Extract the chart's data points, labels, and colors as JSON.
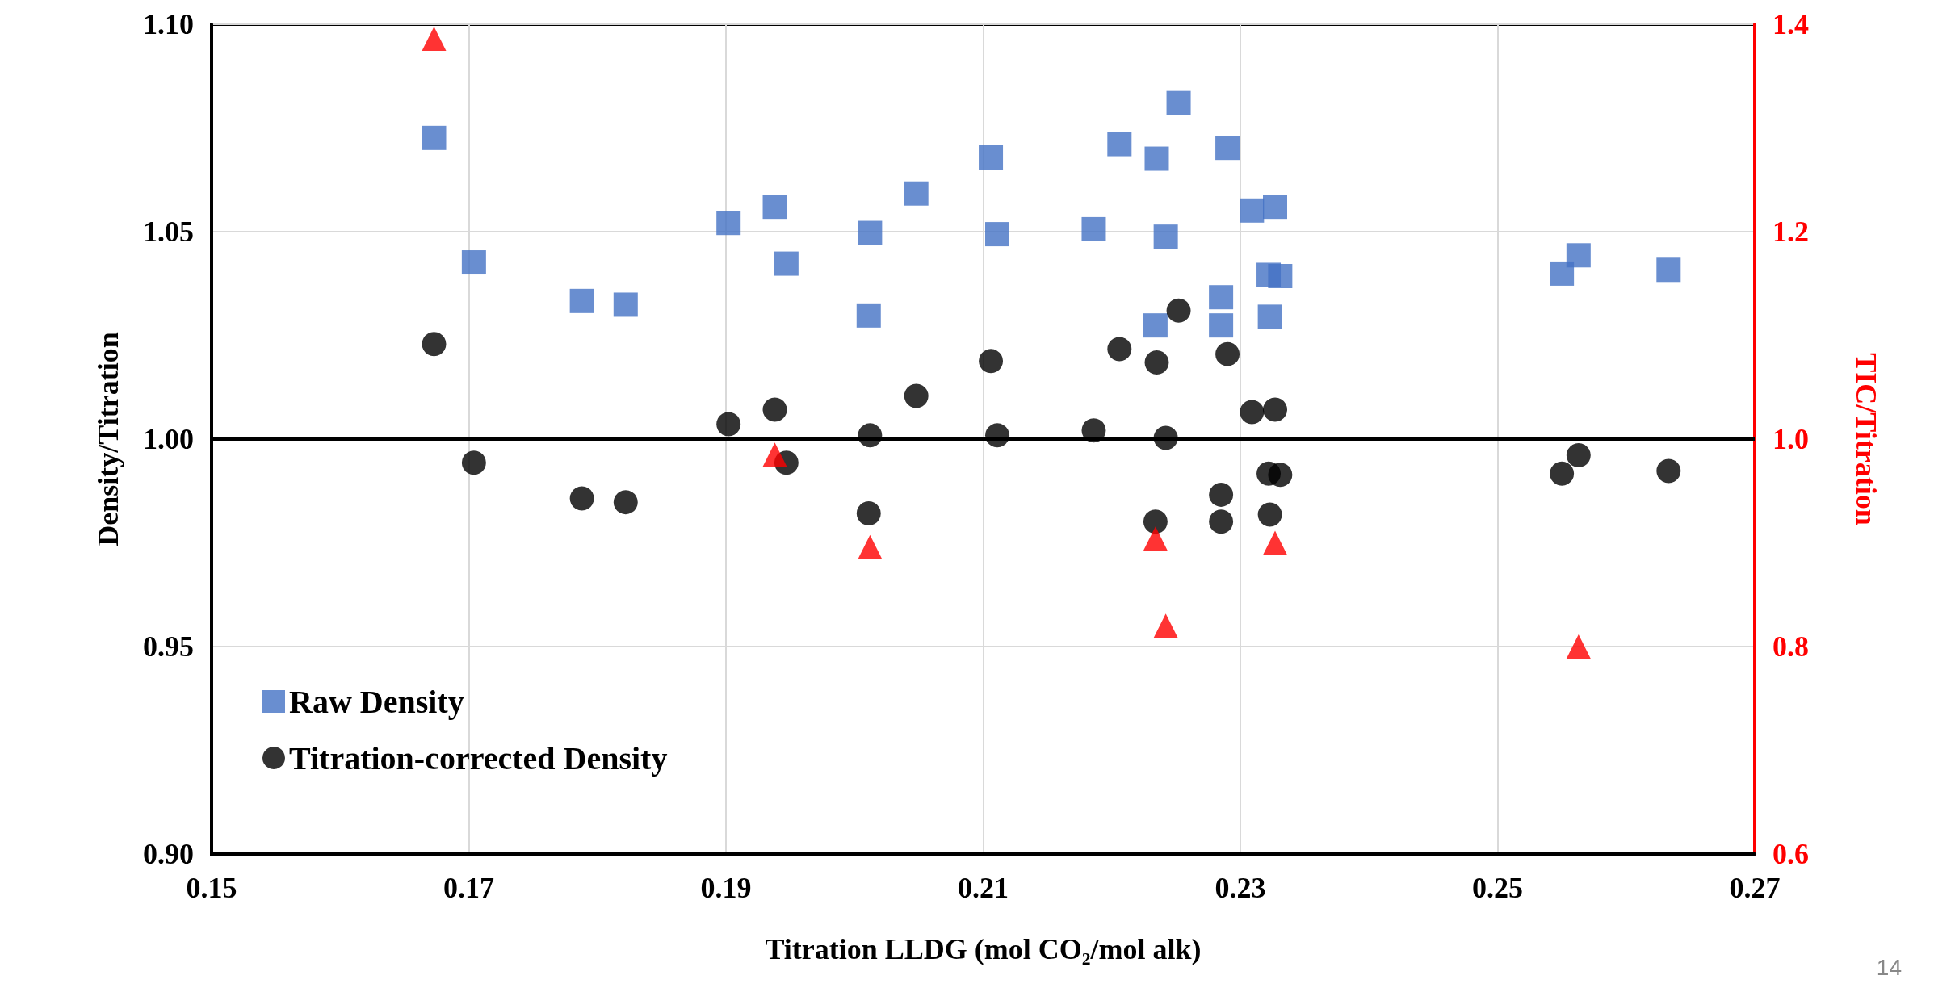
{
  "chart_data": {
    "type": "scatter",
    "xlabel": "Titration LLDG (mol CO₂/mol alk)",
    "ylabel": "Density/Titration",
    "y2label": "TIC/Titration",
    "xlim": [
      0.15,
      0.27
    ],
    "xticks": [
      0.15,
      0.17,
      0.19,
      0.21,
      0.23,
      0.25,
      0.27
    ],
    "ylim": [
      0.9,
      1.1
    ],
    "yticks": [
      {
        "value": 0.9,
        "label": "0.90"
      },
      {
        "value": 0.95,
        "label": "0.95"
      },
      {
        "value": 1.0,
        "label": "1.00"
      },
      {
        "value": 1.05,
        "label": "1.05"
      },
      {
        "value": 1.1,
        "label": "1.10"
      }
    ],
    "y2lim": [
      0.6,
      1.4
    ],
    "y2ticks": [
      0.6,
      0.8,
      {
        "value": 1.0,
        "label": "1.0"
      },
      1.2,
      1.4
    ],
    "grid": true,
    "legend": "bottom left",
    "ref_lines": [
      {
        "axis": "y",
        "value": 1.0,
        "color": "#000000"
      }
    ],
    "annotations": [
      "14"
    ],
    "series": [
      {
        "name": "Raw Density",
        "color": "#4472c4",
        "marker": "square",
        "x": [
          0.1673,
          0.1704,
          0.1788,
          0.1822,
          0.1902,
          0.1938,
          0.1947,
          0.2012,
          0.2011,
          0.2048,
          0.2106,
          0.2111,
          0.2186,
          0.2206,
          0.2235,
          0.2242,
          0.2252,
          0.229,
          0.2234,
          0.2285,
          0.2285,
          0.2309,
          0.2322,
          0.2327,
          0.2331,
          0.2323,
          0.255,
          0.2563,
          0.2633
        ],
        "values": [
          1.0726,
          1.0426,
          1.0333,
          1.0324,
          1.0521,
          1.056,
          1.0423,
          1.0497,
          1.0298,
          1.0592,
          1.0679,
          1.0494,
          1.0506,
          1.0711,
          1.0676,
          1.0488,
          1.081,
          1.0702,
          1.0274,
          1.0342,
          1.0274,
          1.0551,
          1.0396,
          1.056,
          1.0393,
          1.0295,
          1.0399,
          1.0443,
          1.0408
        ]
      },
      {
        "name": "Titration-corrected Density",
        "color": "#000000",
        "marker": "circle",
        "x": [
          0.1673,
          0.1704,
          0.1788,
          0.1822,
          0.1902,
          0.1938,
          0.1947,
          0.2012,
          0.2011,
          0.2048,
          0.2106,
          0.2111,
          0.2186,
          0.2206,
          0.2235,
          0.2242,
          0.2252,
          0.229,
          0.2234,
          0.2285,
          0.2285,
          0.2309,
          0.2322,
          0.2327,
          0.2331,
          0.2323,
          0.255,
          0.2563,
          0.2633
        ],
        "values": [
          1.0229,
          0.9943,
          0.9857,
          0.9848,
          1.0036,
          1.0071,
          0.9943,
          1.0009,
          0.9821,
          1.0104,
          1.0188,
          1.0009,
          1.0021,
          1.0217,
          1.0185,
          1.0003,
          1.031,
          1.0205,
          0.9801,
          0.9866,
          0.9801,
          1.0065,
          0.9917,
          1.0071,
          0.9914,
          0.9818,
          0.9917,
          0.9961,
          0.9923
        ]
      },
      {
        "color": "#ff0000",
        "marker": "triangle",
        "axis": "y2",
        "x": [
          0.1673,
          0.1938,
          0.2012,
          0.2234,
          0.2242,
          0.2327,
          0.2563
        ],
        "values": [
          1.386,
          0.985,
          0.896,
          0.904,
          0.82,
          0.9,
          0.8
        ]
      }
    ]
  }
}
